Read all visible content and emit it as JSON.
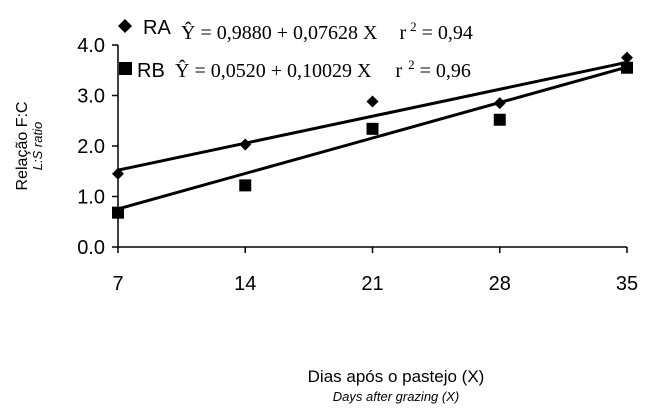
{
  "chart_data": {
    "type": "scatter",
    "ylabel": "Relação F:C",
    "ylabel_secondary": "L:S ratio",
    "xlabel": "Dias após o pastejo (X)",
    "xlabel_secondary": "Days after grazing (X)",
    "x": [
      7,
      14,
      21,
      28,
      35
    ],
    "xlim": [
      7,
      35
    ],
    "ylim": [
      0.0,
      4.0
    ],
    "x_ticks": [
      "7",
      "14",
      "21",
      "28",
      "35"
    ],
    "y_ticks": [
      "0.0",
      "1.0",
      "2.0",
      "3.0",
      "4.0"
    ],
    "grid": false,
    "legend_position": "top",
    "series": [
      {
        "name": "RA",
        "marker": "diamond",
        "values": [
          1.45,
          2.03,
          2.88,
          2.85,
          3.75
        ],
        "fit": {
          "intercept": 0.988,
          "slope": 0.07628
        },
        "equation": {
          "y_hat": "Ŷ",
          "rhs": " = 0,9880  + 0,07628 X",
          "r": "r",
          "sup": "2",
          "r2": " = 0,94"
        }
      },
      {
        "name": "RB",
        "marker": "square",
        "values": [
          0.68,
          1.22,
          2.34,
          2.52,
          3.55
        ],
        "fit": {
          "intercept": 0.052,
          "slope": 0.10029
        },
        "equation": {
          "y_hat": "Ŷ",
          "rhs": " = 0,0520  + 0,10029 X",
          "r": "r",
          "sup": "2",
          "r2": " = 0,96"
        }
      }
    ],
    "colors": {
      "marker": "#000000",
      "line": "#000000"
    }
  }
}
